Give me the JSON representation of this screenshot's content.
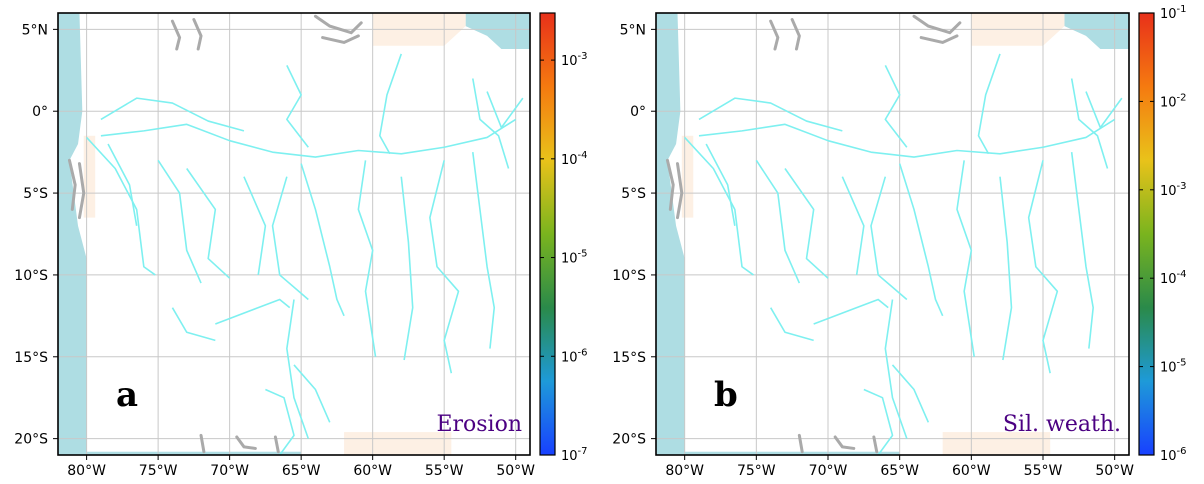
{
  "chart_data": [
    {
      "type": "heatmap",
      "panel_label": "a",
      "title": "Erosion",
      "xlabel": "",
      "ylabel": "",
      "xlim": [
        -82,
        -49
      ],
      "ylim": [
        -21,
        6
      ],
      "grid": true,
      "xticks": [
        -80,
        -75,
        -70,
        -65,
        -60,
        -55,
        -50
      ],
      "xtick_labels": [
        "80°W",
        "75°W",
        "70°W",
        "65°W",
        "60°W",
        "55°W",
        "50°W"
      ],
      "yticks": [
        5,
        0,
        -5,
        -10,
        -15,
        -20
      ],
      "ytick_labels": [
        "5°N",
        "0°",
        "5°S",
        "10°S",
        "15°S",
        "20°S"
      ],
      "colorbar": {
        "scale": "log",
        "range": [
          1e-07,
          0.003
        ],
        "ticks": [
          1e-07,
          1e-06,
          1e-05,
          0.0001,
          0.001
        ],
        "tick_labels": [
          {
            "base": "10",
            "exp": "-7"
          },
          {
            "base": "10",
            "exp": "-6"
          },
          {
            "base": "10",
            "exp": "-5"
          },
          {
            "base": "10",
            "exp": "-4"
          },
          {
            "base": "10",
            "exp": "-3"
          }
        ]
      }
    },
    {
      "type": "heatmap",
      "panel_label": "b",
      "title": "Sil. weath.",
      "xlabel": "",
      "ylabel": "",
      "xlim": [
        -82,
        -49
      ],
      "ylim": [
        -21,
        6
      ],
      "grid": true,
      "xticks": [
        -80,
        -75,
        -70,
        -65,
        -60,
        -55,
        -50
      ],
      "xtick_labels": [
        "80°W",
        "75°W",
        "70°W",
        "65°W",
        "60°W",
        "55°W",
        "50°W"
      ],
      "yticks": [
        5,
        0,
        -5,
        -10,
        -15,
        -20
      ],
      "ytick_labels": [
        "5°N",
        "0°",
        "5°S",
        "10°S",
        "15°S",
        "20°S"
      ],
      "colorbar": {
        "scale": "log",
        "range": [
          1e-06,
          0.1
        ],
        "ticks": [
          1e-06,
          1e-05,
          0.0001,
          0.001,
          0.01,
          0.1
        ],
        "tick_labels": [
          {
            "base": "10",
            "exp": "-6"
          },
          {
            "base": "10",
            "exp": "-5"
          },
          {
            "base": "10",
            "exp": "-4"
          },
          {
            "base": "10",
            "exp": "-3"
          },
          {
            "base": "10",
            "exp": "-2"
          },
          {
            "base": "10",
            "exp": "-1"
          }
        ]
      }
    }
  ],
  "colors": {
    "ocean": "#aedde3",
    "river": "#7ef0f0",
    "grey_rivers": "#aaaaaa",
    "beige_land": "#fdf0e4",
    "grid": "#c8c8c8",
    "panel_title": "#4b0082",
    "colormap": [
      "#1840ff",
      "#1e9ad8",
      "#2a8a4a",
      "#7ab41e",
      "#e9c21a",
      "#f57a10",
      "#e8301a"
    ]
  }
}
